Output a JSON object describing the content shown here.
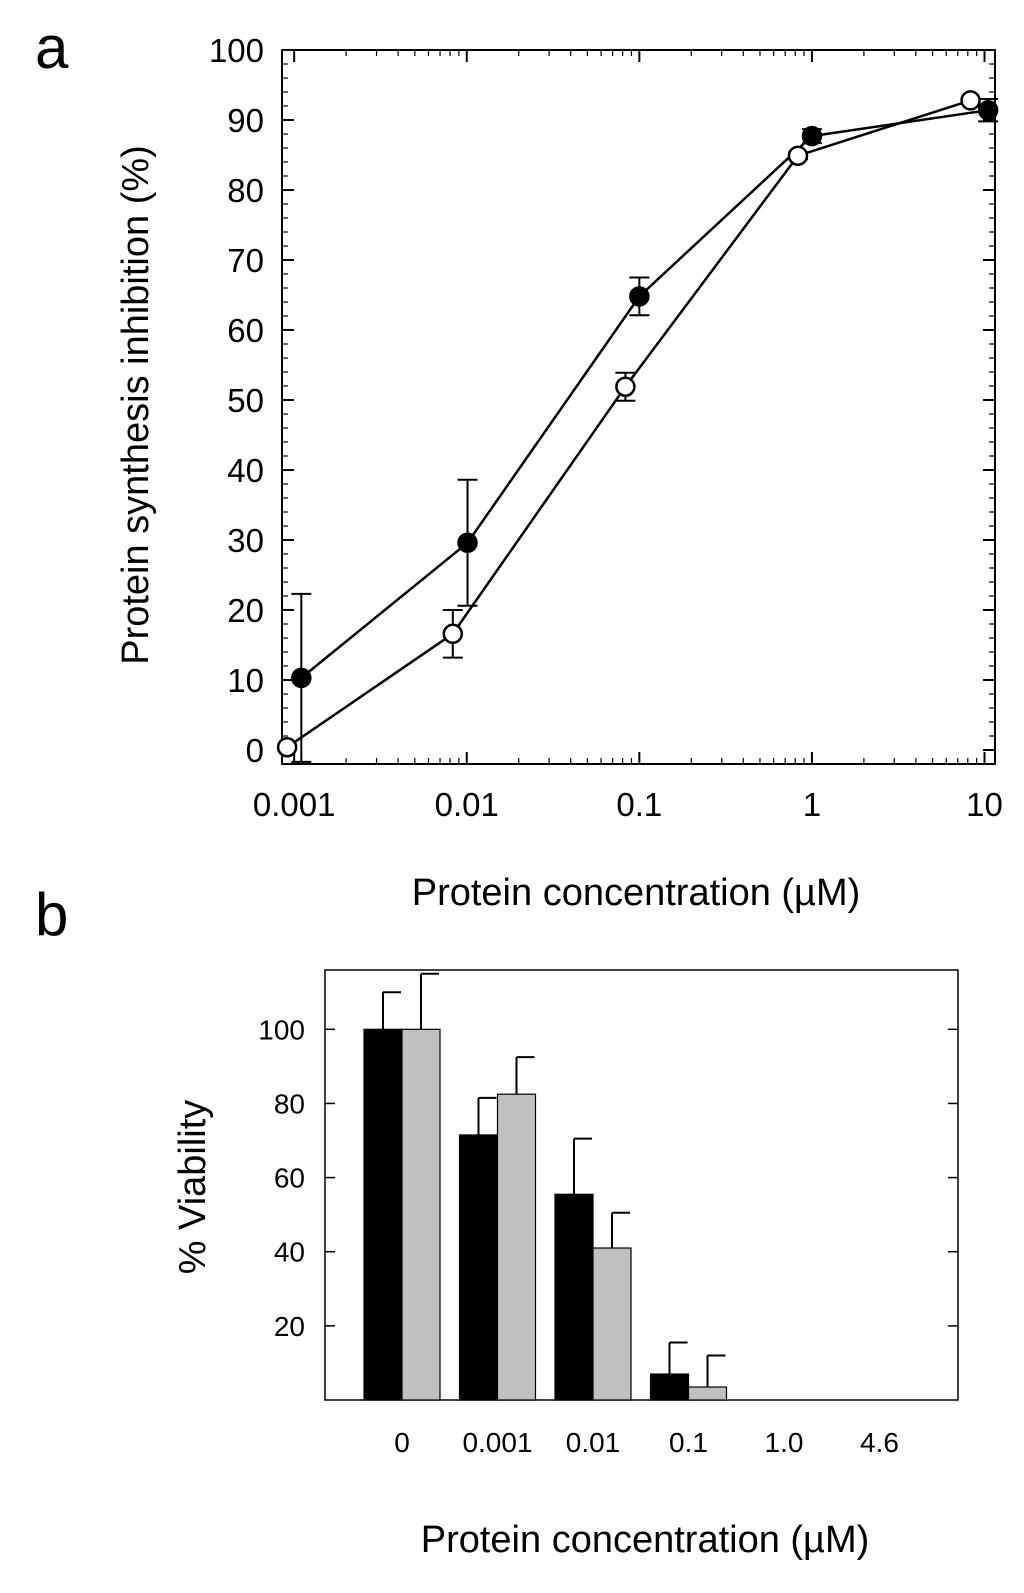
{
  "figure": {
    "panel_a_letter": "a",
    "panel_b_letter": "b"
  },
  "chart_data": [
    {
      "type": "line",
      "panel": "a",
      "xlabel": "Protein concentration (µM)",
      "ylabel": "Protein synthesis inhibition (%)",
      "xscale": "log",
      "xlim": [
        0.00085,
        11.5
      ],
      "ylim": [
        -2,
        100
      ],
      "xticks": [
        0.001,
        0.01,
        0.1,
        1,
        10
      ],
      "xtick_labels": [
        "0.001",
        "0.01",
        "0.1",
        "1",
        "10"
      ],
      "yticks": [
        0,
        10,
        20,
        30,
        40,
        50,
        60,
        70,
        80,
        90,
        100
      ],
      "ytick_labels": [
        "0",
        "10",
        "20",
        "30",
        "40",
        "50",
        "60",
        "70",
        "80",
        "90",
        "100"
      ],
      "grid": false,
      "legend": "none",
      "series": [
        {
          "marker": "filled-circle",
          "color": "#000000",
          "x": [
            0.0011,
            0.0101,
            0.1,
            1.0,
            10.5
          ],
          "y": [
            10.3,
            29.6,
            64.8,
            87.7,
            91.4
          ],
          "error": [
            12,
            9,
            2.7,
            1.0,
            1.6
          ]
        },
        {
          "marker": "open-circle",
          "color": "#000000",
          "x": [
            0.00091,
            0.0083,
            0.083,
            0.83,
            8.3
          ],
          "y": [
            0.4,
            16.6,
            51.9,
            84.9,
            92.8
          ],
          "error": [
            0,
            3.4,
            2,
            0.5,
            0
          ]
        }
      ]
    },
    {
      "type": "bar",
      "panel": "b",
      "xlabel": "Protein concentration (µM)",
      "ylabel": "% Viability",
      "categories": [
        "0",
        "0.001",
        "0.01",
        "0.1",
        "1.0",
        "4.6"
      ],
      "ylim": [
        0,
        116
      ],
      "yticks": [
        20,
        40,
        60,
        80,
        100
      ],
      "ytick_labels": [
        "20",
        "40",
        "60",
        "80",
        "100"
      ],
      "grid": false,
      "legend": "none",
      "series": [
        {
          "color": "#000000",
          "values": [
            100,
            71.5,
            55.5,
            7,
            0,
            0
          ],
          "error": [
            10,
            10,
            15,
            8.5,
            0,
            0
          ]
        },
        {
          "color": "#c0c0c0",
          "values": [
            100,
            82.5,
            41,
            3.5,
            0,
            0
          ],
          "error": [
            15,
            10,
            9.5,
            8.5,
            0,
            0
          ]
        }
      ]
    }
  ]
}
